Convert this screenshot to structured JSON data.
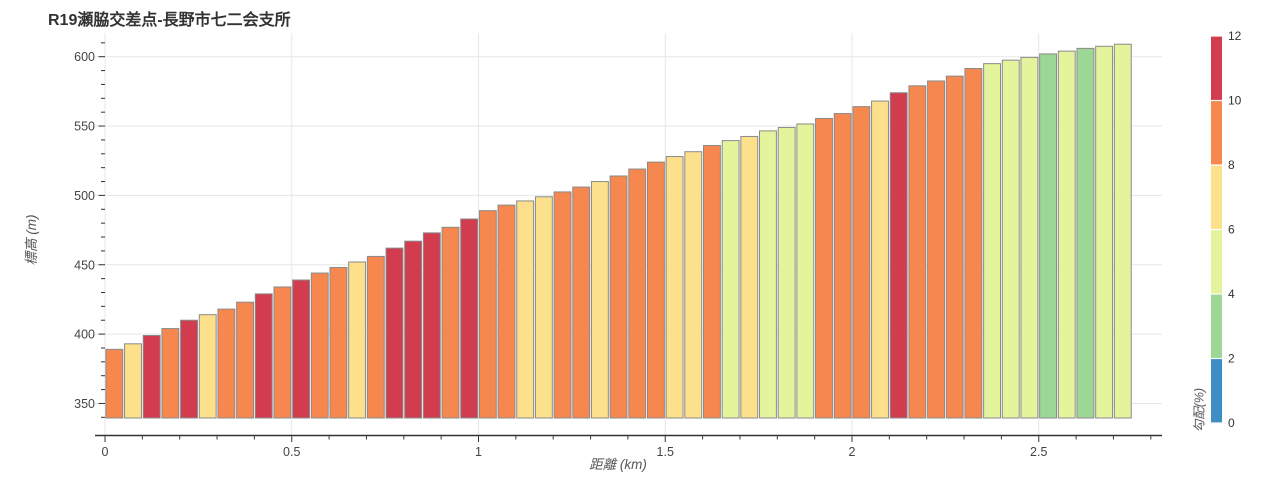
{
  "title": "R19瀬脇交差点-長野市七二会支所",
  "chart_data": {
    "type": "bar",
    "title": "R19瀬脇交差点-長野市七二会支所",
    "xlabel": "距離 (km)",
    "ylabel": "標高 (m)",
    "colorbar_label": "勾配(%)",
    "x_ticks": [
      0,
      0.5,
      1,
      1.5,
      2,
      2.5
    ],
    "x_minor_step_km": 0.1,
    "y_ticks": [
      350,
      400,
      450,
      500,
      550,
      600
    ],
    "y_minor_step_m": 10,
    "colorbar_ticks": [
      0,
      2,
      4,
      6,
      8,
      10,
      12
    ],
    "grid": true,
    "x_range_km": [
      -0.03,
      2.83
    ],
    "y_range_m": [
      337,
      617
    ],
    "segment_length_km": 0.05,
    "total_distance_km": 2.75,
    "bar_base_elevation_m": 339.5,
    "slope_palette": {
      "0-2": "#3d8ec4",
      "2-4": "#9cd795",
      "4-6": "#e3f49c",
      "6-8": "#fce08b",
      "8-10": "#f6884f",
      "10-12": "#d13d4f"
    },
    "bar_border_color": "#8a8a8a",
    "elevations_m": [
      389,
      393,
      399,
      404,
      410,
      414,
      418,
      423,
      429,
      434,
      439,
      444,
      448,
      452,
      456,
      462,
      467,
      473,
      477,
      483,
      489,
      493,
      496,
      499,
      502.5,
      506,
      510,
      514,
      519,
      524,
      528,
      531.5,
      536,
      539.5,
      542.5,
      546.5,
      549,
      551.5,
      555.5,
      559,
      564,
      568,
      574,
      579,
      582.5,
      586,
      591.5,
      595,
      597.5,
      599.5,
      602,
      604,
      606,
      607.5,
      609
    ],
    "slope_classes": [
      "8-10",
      "6-8",
      "10-12",
      "8-10",
      "10-12",
      "6-8",
      "8-10",
      "8-10",
      "10-12",
      "8-10",
      "10-12",
      "8-10",
      "8-10",
      "6-8",
      "8-10",
      "10-12",
      "10-12",
      "10-12",
      "8-10",
      "10-12",
      "8-10",
      "8-10",
      "6-8",
      "6-8",
      "8-10",
      "8-10",
      "6-8",
      "8-10",
      "8-10",
      "8-10",
      "6-8",
      "6-8",
      "8-10",
      "4-6",
      "6-8",
      "4-6",
      "4-6",
      "4-6",
      "8-10",
      "8-10",
      "8-10",
      "6-8",
      "10-12",
      "8-10",
      "8-10",
      "8-10",
      "8-10",
      "4-6",
      "4-6",
      "4-6",
      "2-4",
      "4-6",
      "2-4",
      "4-6",
      "4-6"
    ]
  }
}
